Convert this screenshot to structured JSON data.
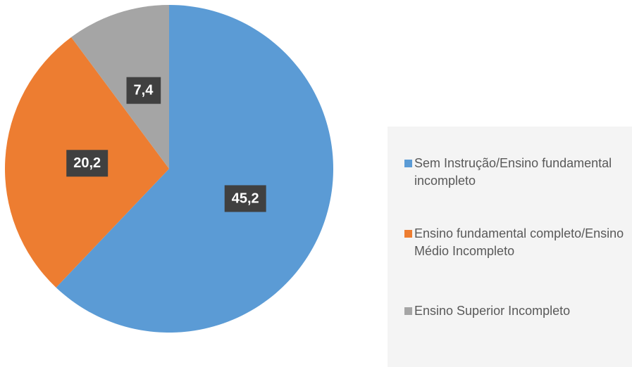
{
  "chart_data": {
    "type": "pie",
    "categories": [
      "Sem Instrução/Ensino fundamental incompleto",
      "Ensino fundamental completo/Ensino Médio Incompleto",
      "Ensino Superior Incompleto"
    ],
    "values": [
      45.2,
      20.2,
      7.4
    ],
    "value_labels": [
      "45,2",
      "20,2",
      "7,4"
    ],
    "colors": [
      "#5b9bd5",
      "#ed7d31",
      "#a5a5a5"
    ],
    "legend": "right"
  }
}
